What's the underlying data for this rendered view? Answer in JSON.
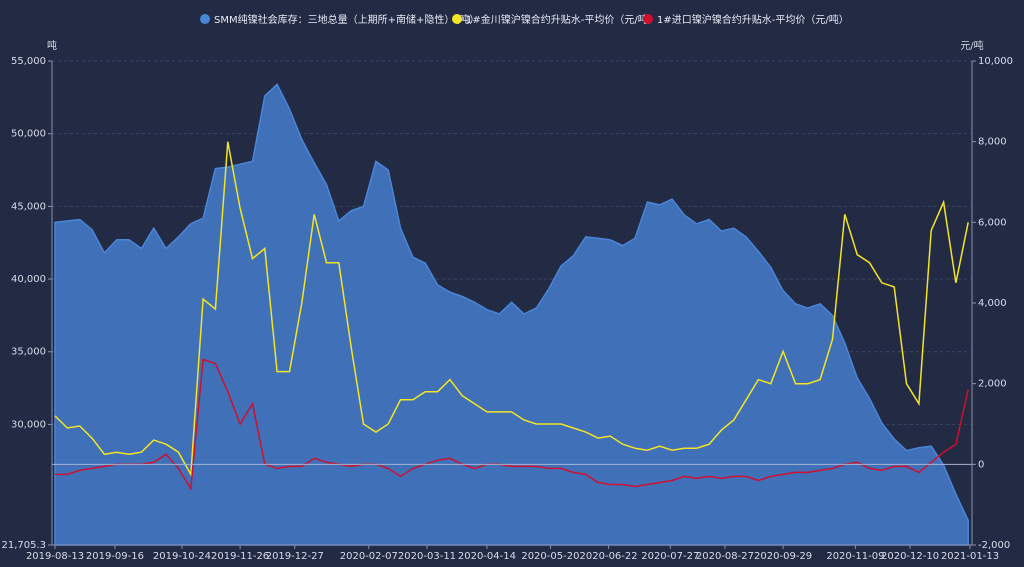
{
  "chart_data": {
    "type": "line",
    "y_label": "吨",
    "y2_label": "元/吨",
    "x": [
      "2019-08-13",
      "2019-08-20",
      "2019-08-27",
      "2019-09-03",
      "2019-09-10",
      "2019-09-17",
      "2019-09-24",
      "2019-10-01",
      "2019-10-08",
      "2019-10-15",
      "2019-10-22",
      "2019-10-29",
      "2019-11-05",
      "2019-11-12",
      "2019-11-19",
      "2019-11-26",
      "2019-12-03",
      "2019-12-10",
      "2019-12-17",
      "2019-12-24",
      "2019-12-31",
      "2020-01-07",
      "2020-01-14",
      "2020-01-21",
      "2020-01-28",
      "2020-02-04",
      "2020-02-11",
      "2020-02-18",
      "2020-02-25",
      "2020-03-03",
      "2020-03-10",
      "2020-03-17",
      "2020-03-24",
      "2020-03-31",
      "2020-04-07",
      "2020-04-14",
      "2020-04-21",
      "2020-04-28",
      "2020-05-05",
      "2020-05-12",
      "2020-05-19",
      "2020-05-26",
      "2020-06-02",
      "2020-06-09",
      "2020-06-16",
      "2020-06-23",
      "2020-06-30",
      "2020-07-07",
      "2020-07-14",
      "2020-07-21",
      "2020-07-28",
      "2020-08-04",
      "2020-08-11",
      "2020-08-18",
      "2020-08-25",
      "2020-09-01",
      "2020-09-08",
      "2020-09-15",
      "2020-09-22",
      "2020-09-29",
      "2020-10-06",
      "2020-10-13",
      "2020-10-20",
      "2020-10-27",
      "2020-11-03",
      "2020-11-10",
      "2020-11-17",
      "2020-11-24",
      "2020-12-01",
      "2020-12-08",
      "2020-12-15",
      "2020-12-22",
      "2020-12-29",
      "2021-01-05",
      "2021-01-12"
    ],
    "xlim": [
      "2019-08-13",
      "2021-01-13"
    ],
    "xticks": [
      "2019-08-13",
      "2019-09-16",
      "2019-10-24",
      "2019-11-26",
      "2019-12-27",
      "2020-02-07",
      "2020-03-11",
      "2020-04-14",
      "2020-05-20",
      "2020-06-22",
      "2020-07-27",
      "2020-08-27",
      "2020-09-29",
      "2020-11-09",
      "2020-12-10",
      "2021-01-13"
    ],
    "ylim": [
      21705.3,
      55000
    ],
    "yticks": [
      {
        "value": 21705.3,
        "label": "21,705.3"
      },
      {
        "value": 30000,
        "label": "30,000"
      },
      {
        "value": 35000,
        "label": "35,000"
      },
      {
        "value": 40000,
        "label": "40,000"
      },
      {
        "value": 45000,
        "label": "45,000"
      },
      {
        "value": 50000,
        "label": "50,000"
      },
      {
        "value": 55000,
        "label": "55,000"
      }
    ],
    "y2lim": [
      -2000,
      10000
    ],
    "y2ticks": [
      {
        "value": -2000,
        "label": "-2,000"
      },
      0,
      {
        "value": 2000,
        "label": "2,000"
      },
      {
        "value": 4000,
        "label": "4,000"
      },
      {
        "value": 6000,
        "label": "6,000"
      },
      {
        "value": 8000,
        "label": "8,000"
      },
      {
        "value": 10000,
        "label": "10,000"
      }
    ],
    "grid": true,
    "series": [
      {
        "name": "SMM纯镍社会库存：三地总量（上期所+南储+隐性）（吨）",
        "color": "#4a86d8",
        "fill": "#3f70b8",
        "style": "area",
        "axis": "y",
        "values": [
          43900,
          44000,
          44100,
          43400,
          41800,
          42700,
          42700,
          42100,
          43500,
          42100,
          42900,
          43800,
          44200,
          47600,
          47700,
          47900,
          48100,
          52600,
          53400,
          51700,
          49600,
          48000,
          46500,
          44000,
          44700,
          45000,
          48100,
          47500,
          43500,
          41500,
          41100,
          39600,
          39100,
          38800,
          38400,
          37900,
          37600,
          38400,
          37600,
          38000,
          39300,
          40900,
          41600,
          42900,
          42800,
          42700,
          42300,
          42800,
          45300,
          45100,
          45500,
          44400,
          43800,
          44100,
          43300,
          43500,
          42900,
          41900,
          40800,
          39200,
          38300,
          38000,
          38300,
          37500,
          35600,
          33200,
          31800,
          30100,
          29000,
          28200,
          28400,
          28500,
          27200,
          25200,
          23400
        ]
      },
      {
        "name": "1#金川镍沪镍合约升贴水-平均价（元/吨）",
        "color": "#f4e524",
        "style": "line",
        "axis": "y2",
        "values": [
          1200,
          900,
          950,
          650,
          250,
          300,
          250,
          300,
          600,
          500,
          300,
          -250,
          4100,
          3850,
          8000,
          6350,
          5100,
          5350,
          2300,
          2300,
          4000,
          6200,
          5000,
          5000,
          2900,
          1000,
          800,
          1000,
          1600,
          1600,
          1800,
          1800,
          2100,
          1700,
          1500,
          1300,
          1300,
          1300,
          1100,
          1000,
          1000,
          1000,
          900,
          800,
          650,
          700,
          500,
          400,
          350,
          450,
          350,
          400,
          400,
          500,
          850,
          1100,
          1600,
          2100,
          2000,
          2800,
          2000,
          2000,
          2100,
          3100,
          6200,
          5200,
          5000,
          4500,
          4400,
          2000,
          1500,
          5800,
          6500,
          4500,
          6000
        ]
      },
      {
        "name": "1#进口镍沪镍合约升贴水-平均价（元/吨）",
        "color": "#d0102e",
        "style": "line",
        "axis": "y2",
        "values": [
          -250,
          -250,
          -150,
          -100,
          -50,
          0,
          0,
          0,
          50,
          250,
          -100,
          -600,
          2600,
          2500,
          1800,
          1000,
          1500,
          0,
          -100,
          -50,
          -50,
          150,
          50,
          0,
          -50,
          0,
          0,
          -100,
          -300,
          -100,
          0,
          100,
          150,
          0,
          -100,
          0,
          0,
          -50,
          -50,
          -50,
          -100,
          -100,
          -200,
          -250,
          -450,
          -500,
          -500,
          -550,
          -500,
          -450,
          -400,
          -300,
          -350,
          -300,
          -350,
          -300,
          -300,
          -400,
          -300,
          -250,
          -200,
          -200,
          -150,
          -100,
          0,
          50,
          -100,
          -150,
          -50,
          -50,
          -200,
          50,
          300,
          500,
          1850
        ]
      }
    ]
  }
}
